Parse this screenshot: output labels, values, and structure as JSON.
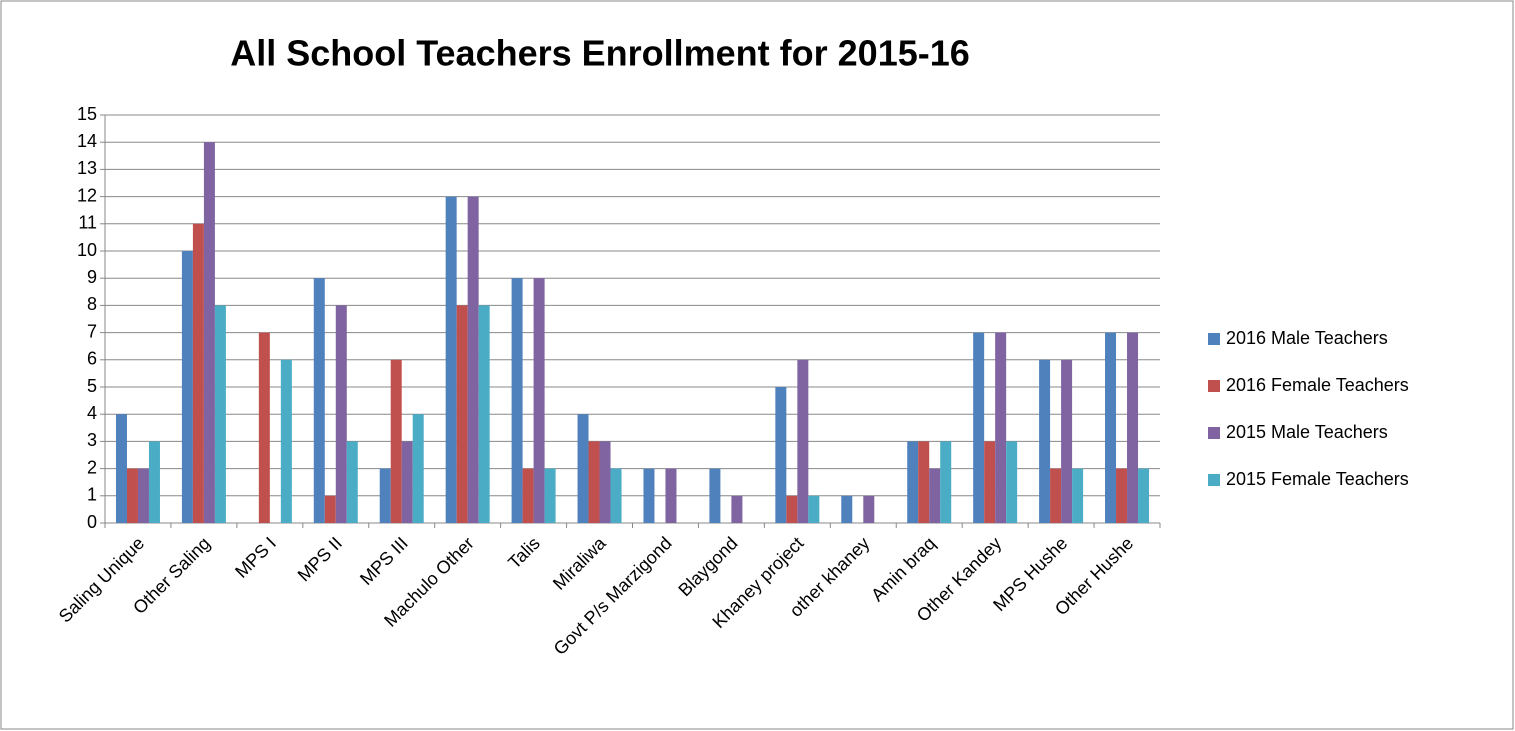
{
  "chart_data": {
    "type": "bar",
    "title": "All School Teachers Enrollment for 2015-16",
    "categories": [
      "Saling Unique",
      "Other Saling",
      "MPS I",
      "MPS II",
      "MPS III",
      "Machulo Other",
      "Talis",
      "Miraliwa",
      "Govt P/s Marzigond",
      "Blaygond",
      "Khaney project",
      "other khaney",
      "Amin braq",
      "Other Kandey",
      "MPS Hushe",
      "Other Hushe"
    ],
    "series": [
      {
        "name": "2016 Male Teachers",
        "color": "#4f81bd",
        "values": [
          4,
          10,
          0,
          9,
          2,
          12,
          9,
          4,
          2,
          2,
          5,
          1,
          3,
          7,
          6,
          7
        ]
      },
      {
        "name": "2016 Female Teachers",
        "color": "#c0504d",
        "values": [
          2,
          11,
          7,
          1,
          6,
          8,
          2,
          3,
          0,
          0,
          1,
          0,
          3,
          3,
          2,
          2
        ]
      },
      {
        "name": "2015 Male Teachers",
        "color": "#8064a2",
        "values": [
          2,
          14,
          0,
          8,
          3,
          12,
          9,
          3,
          2,
          1,
          6,
          1,
          2,
          7,
          6,
          7
        ]
      },
      {
        "name": "2015 Female Teachers",
        "color": "#4bacc6",
        "values": [
          3,
          8,
          6,
          3,
          4,
          8,
          2,
          2,
          0,
          0,
          1,
          0,
          3,
          3,
          2,
          2
        ]
      }
    ],
    "ylim": [
      0,
      15
    ],
    "yticks": [
      0,
      1,
      2,
      3,
      4,
      5,
      6,
      7,
      8,
      9,
      10,
      11,
      12,
      13,
      14,
      15
    ],
    "grid": true,
    "legend": "right"
  }
}
